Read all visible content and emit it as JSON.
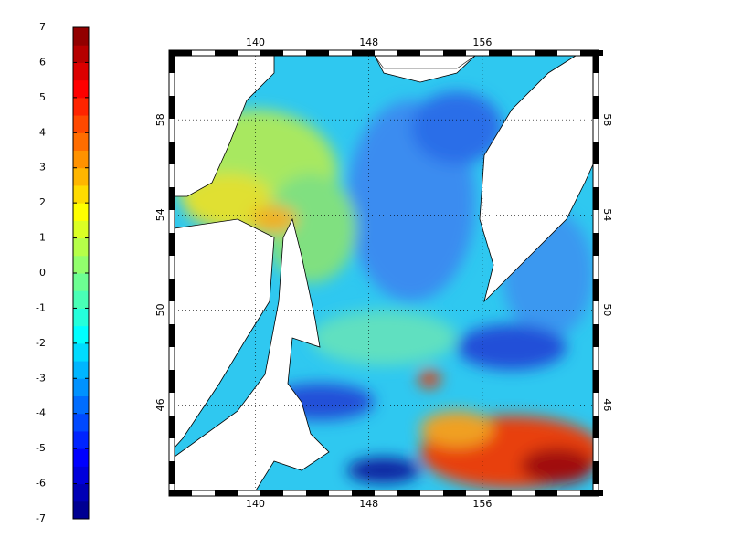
{
  "colorbar": {
    "colormap": "jet",
    "lim": [
      -7,
      7
    ],
    "ticks": [
      -7,
      -6,
      -5,
      -4,
      -3,
      -2,
      -1,
      0,
      1,
      2,
      3,
      4,
      5,
      6,
      7
    ]
  },
  "map": {
    "lon_lim": [
      134.3,
      163.8
    ],
    "lat_lim": [
      42.4,
      60.7
    ],
    "lon_ticks": [
      140,
      148,
      156
    ],
    "lat_ticks": [
      46,
      50,
      54,
      58
    ],
    "grid": true
  }
}
